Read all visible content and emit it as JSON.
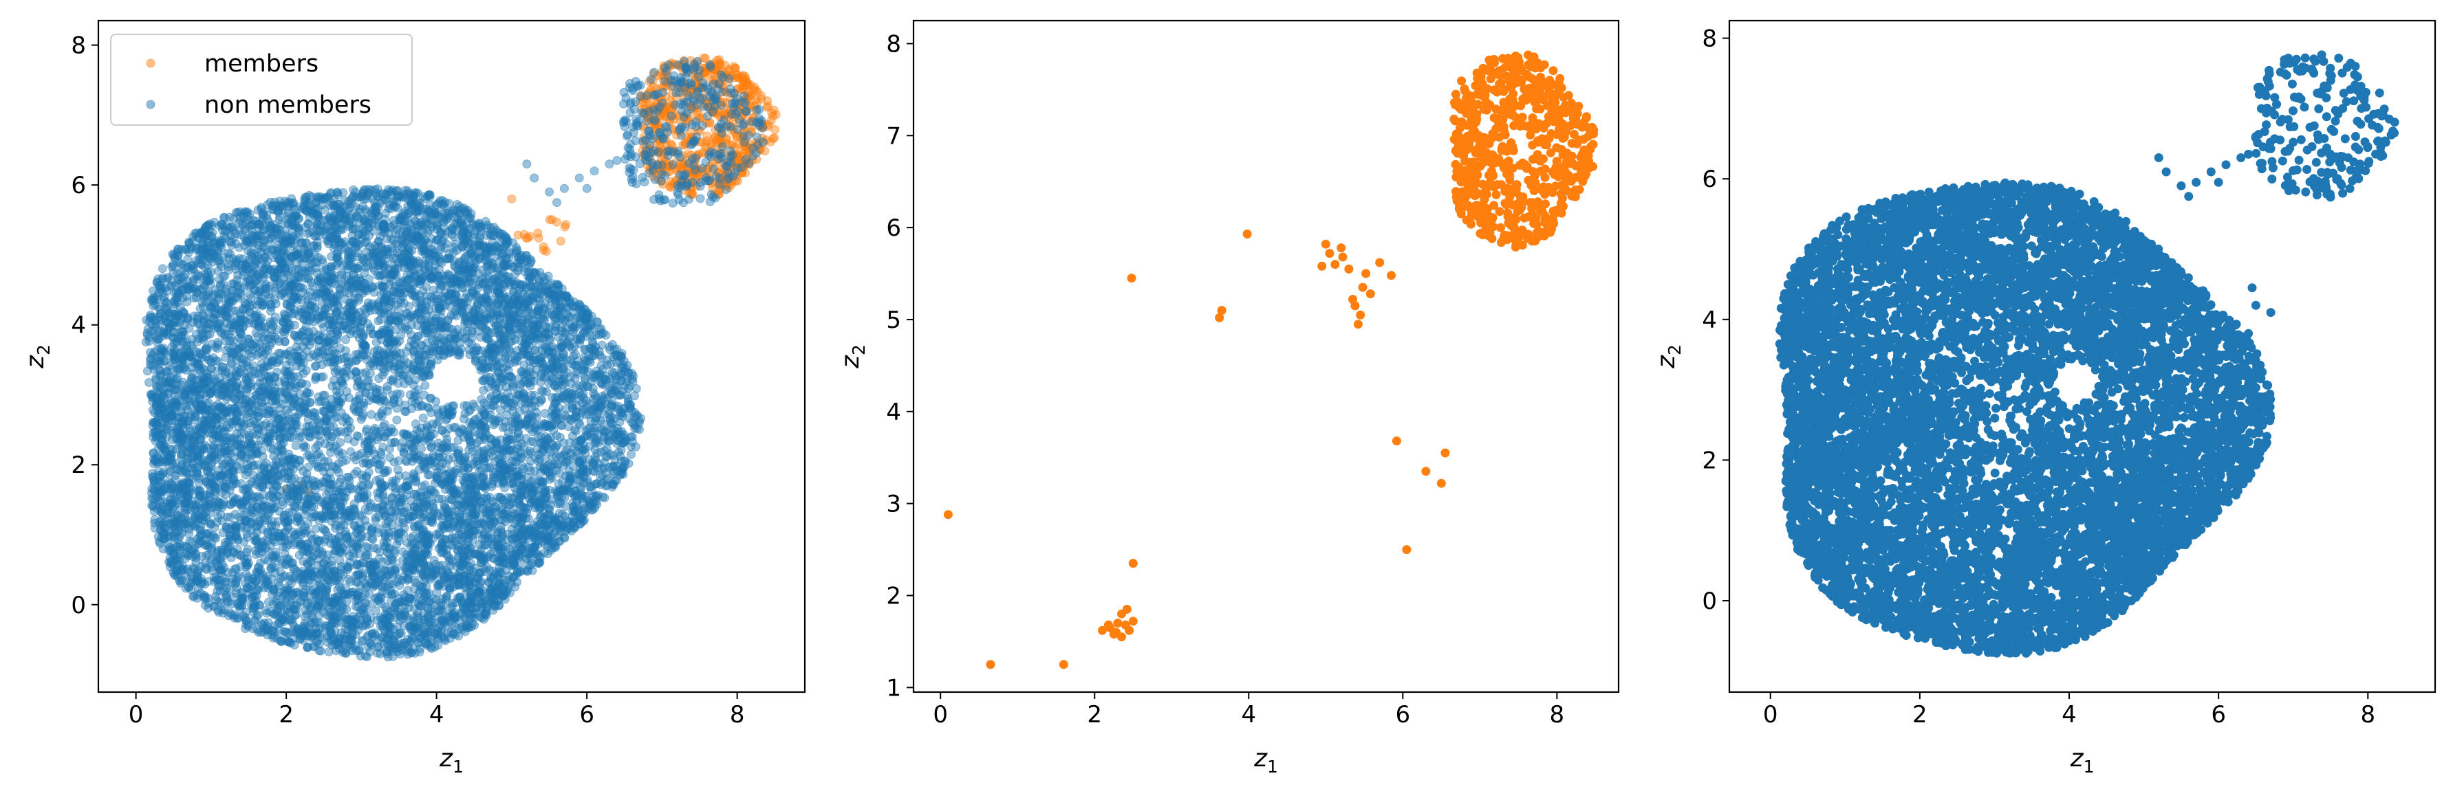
{
  "colors": {
    "members": "#ff7f0e",
    "non_members": "#1f77b4"
  },
  "chart_data": [
    {
      "type": "scatter",
      "xlabel_base": "z",
      "xlabel_sub": "1",
      "ylabel_base": "z",
      "ylabel_sub": "2",
      "xlim": [
        -0.5,
        8.9
      ],
      "ylim": [
        -1.25,
        8.35
      ],
      "xticks": [
        "0",
        "2",
        "4",
        "6",
        "8"
      ],
      "yticks": [
        "0",
        "2",
        "4",
        "6",
        "8"
      ],
      "legend": {
        "placement": "top-left",
        "entries": [
          "members",
          "non members"
        ]
      },
      "series": [
        {
          "name": "members",
          "color": "#ff7f0e",
          "alpha": 0.45,
          "clusters": [
            {
              "cx": 7.55,
              "cy": 6.85,
              "rx": 0.9,
              "ry": 1.0,
              "n": 650
            },
            {
              "cx": 5.4,
              "cy": 5.35,
              "rx": 0.35,
              "ry": 0.3,
              "n": 16
            }
          ],
          "points": [
            [
              2.0,
              1.65
            ],
            [
              2.3,
              1.6
            ],
            [
              6.45,
              3.55
            ],
            [
              5.0,
              5.8
            ],
            [
              2.2,
              1.7
            ]
          ]
        },
        {
          "name": "non members",
          "color": "#1f77b4",
          "alpha": 0.45,
          "clusters": [
            {
              "cx": 3.15,
              "cy": 2.65,
              "rx": 3.25,
              "ry": 3.35,
              "n": 9000,
              "hole": {
                "cx": 4.25,
                "cy": 3.2,
                "r": 0.35
              }
            },
            {
              "cx": 7.35,
              "cy": 6.75,
              "rx": 0.95,
              "ry": 1.05,
              "n": 320
            }
          ],
          "points": [
            [
              5.3,
              6.1
            ],
            [
              5.5,
              5.9
            ],
            [
              5.7,
              5.95
            ],
            [
              5.9,
              6.1
            ],
            [
              6.1,
              6.2
            ],
            [
              6.3,
              6.3
            ],
            [
              5.2,
              6.3
            ],
            [
              5.6,
              5.75
            ],
            [
              6.0,
              5.95
            ],
            [
              6.4,
              6.35
            ]
          ]
        }
      ]
    },
    {
      "type": "scatter",
      "xlabel_base": "z",
      "xlabel_sub": "1",
      "ylabel_base": "z",
      "ylabel_sub": "2",
      "xlim": [
        -0.35,
        8.8
      ],
      "ylim": [
        0.95,
        8.25
      ],
      "xticks": [
        "0",
        "2",
        "4",
        "6",
        "8"
      ],
      "yticks": [
        "1",
        "2",
        "3",
        "4",
        "5",
        "6",
        "7",
        "8"
      ],
      "series": [
        {
          "name": "members",
          "color": "#ff7f0e",
          "alpha": 1,
          "clusters": [
            {
              "cx": 7.5,
              "cy": 6.85,
              "rx": 0.92,
              "ry": 1.05,
              "n": 650
            }
          ],
          "points": [
            [
              0.1,
              2.88
            ],
            [
              0.65,
              1.25
            ],
            [
              1.6,
              1.25
            ],
            [
              2.1,
              1.62
            ],
            [
              2.2,
              1.65
            ],
            [
              2.25,
              1.58
            ],
            [
              2.3,
              1.7
            ],
            [
              2.35,
              1.55
            ],
            [
              2.4,
              1.68
            ],
            [
              2.42,
              1.85
            ],
            [
              2.45,
              1.62
            ],
            [
              2.5,
              1.72
            ],
            [
              2.35,
              1.8
            ],
            [
              2.28,
              1.6
            ],
            [
              2.18,
              1.68
            ],
            [
              2.5,
              2.35
            ],
            [
              2.48,
              5.45
            ],
            [
              3.62,
              5.02
            ],
            [
              3.65,
              5.1
            ],
            [
              3.98,
              5.93
            ],
            [
              4.95,
              5.58
            ],
            [
              5.0,
              5.82
            ],
            [
              5.05,
              5.72
            ],
            [
              5.12,
              5.6
            ],
            [
              5.2,
              5.78
            ],
            [
              5.22,
              5.68
            ],
            [
              5.3,
              5.55
            ],
            [
              5.35,
              5.22
            ],
            [
              5.38,
              5.15
            ],
            [
              5.42,
              4.95
            ],
            [
              5.45,
              5.05
            ],
            [
              5.48,
              5.35
            ],
            [
              5.52,
              5.5
            ],
            [
              5.58,
              5.28
            ],
            [
              5.7,
              5.62
            ],
            [
              5.85,
              5.48
            ],
            [
              5.92,
              3.68
            ],
            [
              6.05,
              2.5
            ],
            [
              6.3,
              3.35
            ],
            [
              6.5,
              3.22
            ],
            [
              6.55,
              3.55
            ]
          ]
        }
      ]
    },
    {
      "type": "scatter",
      "xlabel_base": "z",
      "xlabel_sub": "1",
      "ylabel_base": "z",
      "ylabel_sub": "2",
      "xlim": [
        -0.55,
        8.9
      ],
      "ylim": [
        -1.3,
        8.25
      ],
      "xticks": [
        "0",
        "2",
        "4",
        "6",
        "8"
      ],
      "yticks": [
        "0",
        "2",
        "4",
        "6",
        "8"
      ],
      "series": [
        {
          "name": "non members",
          "color": "#1f77b4",
          "alpha": 1,
          "clusters": [
            {
              "cx": 3.15,
              "cy": 2.65,
              "rx": 3.25,
              "ry": 3.35,
              "n": 9000,
              "hole": {
                "cx": 4.1,
                "cy": 3.1,
                "r": 0.3
              }
            },
            {
              "cx": 7.35,
              "cy": 6.75,
              "rx": 0.95,
              "ry": 1.05,
              "n": 220
            }
          ],
          "points": [
            [
              5.3,
              6.1
            ],
            [
              5.5,
              5.9
            ],
            [
              5.7,
              5.95
            ],
            [
              5.9,
              6.1
            ],
            [
              6.1,
              6.2
            ],
            [
              6.3,
              6.3
            ],
            [
              5.2,
              6.3
            ],
            [
              5.6,
              5.75
            ],
            [
              6.0,
              5.95
            ],
            [
              6.4,
              6.35
            ],
            [
              6.45,
              4.45
            ],
            [
              6.5,
              4.2
            ],
            [
              6.7,
              4.1
            ],
            [
              6.4,
              3.8
            ]
          ]
        }
      ]
    }
  ]
}
